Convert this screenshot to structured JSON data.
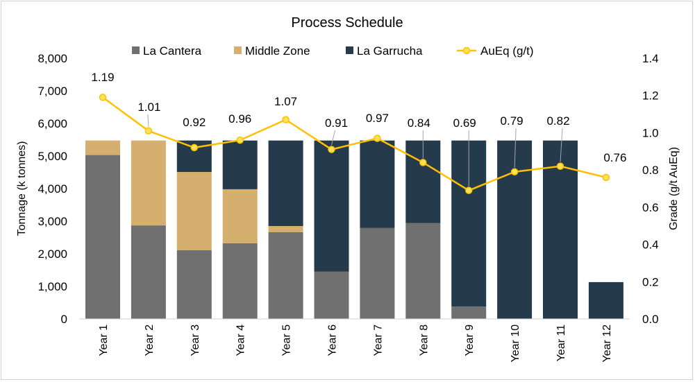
{
  "chart_data": {
    "type": "bar",
    "stacked": true,
    "title": "Process Schedule",
    "ylabel": "Tonnage (k tonnes)",
    "y2label": "Grade (g/t AuEq)",
    "ylim": [
      0,
      8000
    ],
    "y2lim": [
      0,
      1.4
    ],
    "yticks": [
      "0",
      "1,000",
      "2,000",
      "3,000",
      "4,000",
      "5,000",
      "6,000",
      "7,000",
      "8,000"
    ],
    "y2ticks": [
      "0.0",
      "0.2",
      "0.4",
      "0.6",
      "0.8",
      "1.0",
      "1.2",
      "1.4"
    ],
    "legend_position": "top",
    "grid": false,
    "categories": [
      "Year 1",
      "Year 2",
      "Year 3",
      "Year 4",
      "Year 5",
      "Year 6",
      "Year 7",
      "Year 8",
      "Year 9",
      "Year 10",
      "Year 11",
      "Year 12"
    ],
    "series": [
      {
        "name": "La Cantera",
        "type": "bar",
        "color": "#707070",
        "values": [
          5030,
          2870,
          2110,
          2320,
          2660,
          1450,
          2790,
          2940,
          380,
          0,
          0,
          0
        ]
      },
      {
        "name": "Middle Zone",
        "type": "bar",
        "color": "#D4AF6D",
        "values": [
          445,
          2605,
          2400,
          1660,
          190,
          0,
          0,
          0,
          0,
          0,
          0,
          0
        ]
      },
      {
        "name": "La Garrucha",
        "type": "bar",
        "color": "#253A4A",
        "values": [
          0,
          0,
          965,
          1495,
          2625,
          4025,
          2685,
          2535,
          5095,
          5475,
          5475,
          1130
        ]
      },
      {
        "name": "AuEq (g/t)",
        "type": "line",
        "axis": "right",
        "color": "#FFC000",
        "values": [
          1.19,
          1.01,
          0.92,
          0.96,
          1.07,
          0.91,
          0.97,
          0.84,
          0.69,
          0.79,
          0.82,
          0.76
        ],
        "labels": [
          "1.19",
          "1.01",
          "0.92",
          "0.96",
          "1.07",
          "0.91",
          "0.97",
          "0.84",
          "0.69",
          "0.79",
          "0.82",
          "0.76"
        ]
      }
    ]
  }
}
